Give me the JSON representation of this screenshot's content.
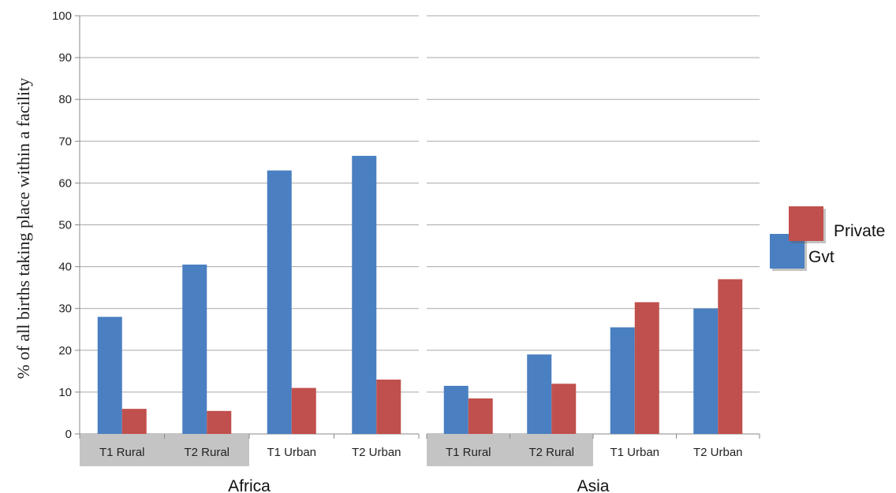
{
  "chart_data": {
    "type": "bar",
    "ylabel": "% of all births taking place within a facility",
    "ylim": [
      0,
      100
    ],
    "yticks": [
      0,
      10,
      20,
      30,
      40,
      50,
      60,
      70,
      80,
      90,
      100
    ],
    "grid": true,
    "legend_position": "right",
    "legend": [
      "Private",
      "Gvt"
    ],
    "colors": {
      "Gvt": "#4a7fc1",
      "Private": "#c0504d",
      "rural_band": "#c4c4c4",
      "grid": "#a8a8a8"
    },
    "panels": [
      {
        "label": "Africa",
        "categories": [
          "T1 Rural",
          "T2 Rural",
          "T1 Urban",
          "T2 Urban"
        ],
        "shaded_categories": [
          "T1 Rural",
          "T2 Rural"
        ],
        "series": [
          {
            "name": "Gvt",
            "values": [
              28,
              40.5,
              63,
              66.5
            ]
          },
          {
            "name": "Private",
            "values": [
              6,
              5.5,
              11,
              13
            ]
          }
        ]
      },
      {
        "label": "Asia",
        "categories": [
          "T1 Rural",
          "T2 Rural",
          "T1 Urban",
          "T2 Urban"
        ],
        "shaded_categories": [
          "T1 Rural",
          "T2 Rural"
        ],
        "series": [
          {
            "name": "Gvt",
            "values": [
              11.5,
              19,
              25.5,
              30
            ]
          },
          {
            "name": "Private",
            "values": [
              8.5,
              12,
              31.5,
              37
            ]
          }
        ]
      }
    ]
  }
}
